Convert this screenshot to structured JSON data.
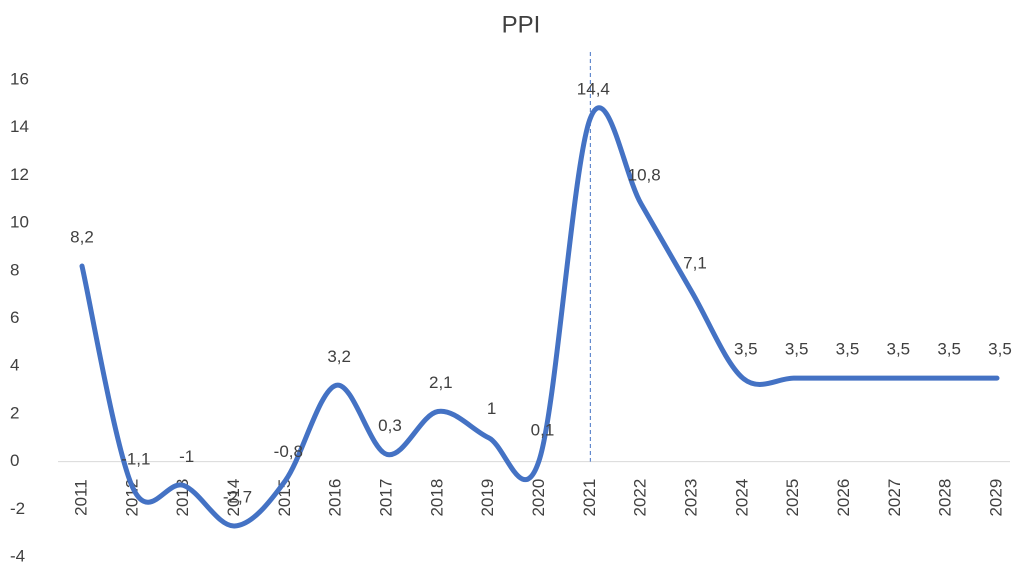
{
  "chart_data": {
    "type": "line",
    "title": "PPI",
    "categories": [
      "2011",
      "2012",
      "2013",
      "2014",
      "2015",
      "2016",
      "2017",
      "2018",
      "2019",
      "2020",
      "2021",
      "2022",
      "2023",
      "2024",
      "2025",
      "2026",
      "2027",
      "2028",
      "2029"
    ],
    "series": [
      {
        "name": "PPI",
        "color": "#4472c4",
        "values": [
          8.2,
          -1.1,
          -1,
          -2.7,
          -0.8,
          3.2,
          0.3,
          2.1,
          1,
          0.1,
          14.4,
          10.8,
          7.1,
          3.5,
          3.5,
          3.5,
          3.5,
          3.5,
          3.5
        ],
        "value_labels": [
          "8,2",
          "-1,1",
          "-1",
          "-2,7",
          "-0,8",
          "3,2",
          "0,3",
          "2,1",
          "1",
          "0,1",
          "14,4",
          "10,8",
          "7,1",
          "3,5",
          "3,5",
          "3,5",
          "3,5",
          "3,5",
          "3,5"
        ]
      }
    ],
    "ylim": [
      -4,
      16
    ],
    "yticks": [
      -4,
      -2,
      0,
      2,
      4,
      6,
      8,
      10,
      12,
      14,
      16
    ],
    "grid": false
  }
}
